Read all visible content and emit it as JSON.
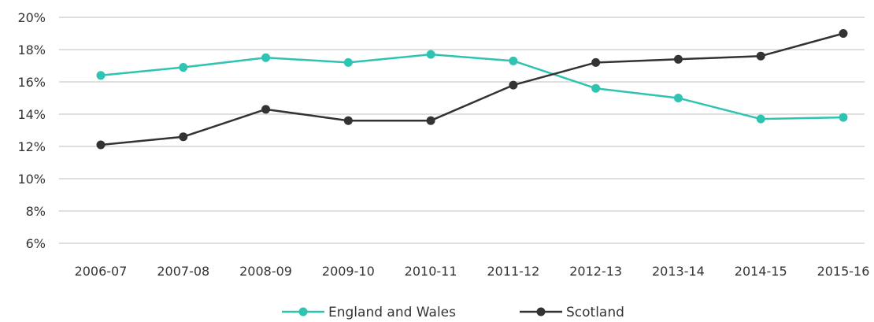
{
  "chart_data": {
    "type": "line",
    "categories": [
      "2006-07",
      "2007-08",
      "2008-09",
      "2009-10",
      "2010-11",
      "2011-12",
      "2012-13",
      "2013-14",
      "2014-15",
      "2015-16"
    ],
    "y_ticks": [
      "6%",
      "8%",
      "10%",
      "12%",
      "14%",
      "16%",
      "18%",
      "20%"
    ],
    "ylim": [
      6,
      20
    ],
    "grid": true,
    "legend_position": "bottom",
    "series": [
      {
        "name": "England and Wales",
        "color": "#2ec4b1",
        "values": [
          16.4,
          16.9,
          17.5,
          17.2,
          17.7,
          17.3,
          15.6,
          15.0,
          13.7,
          13.8
        ]
      },
      {
        "name": "Scotland",
        "color": "#333333",
        "values": [
          12.1,
          12.6,
          14.3,
          13.6,
          13.6,
          15.8,
          17.2,
          17.4,
          17.6,
          19.0
        ]
      }
    ]
  }
}
